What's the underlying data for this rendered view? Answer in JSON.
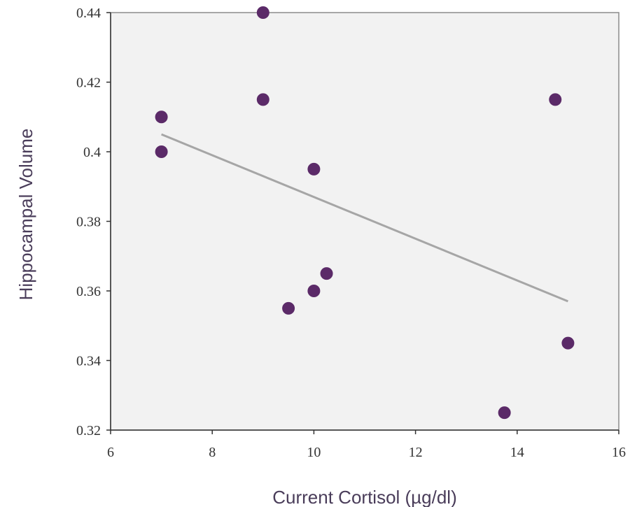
{
  "chart_data": {
    "type": "scatter",
    "title": "",
    "xlabel": "Current Cortisol (µg/dl)",
    "ylabel": "Hippocampal Volume",
    "xlim": [
      6,
      16
    ],
    "ylim": [
      0.32,
      0.44
    ],
    "x_ticks": [
      "6",
      "8",
      "10",
      "12",
      "14",
      "16"
    ],
    "y_ticks": [
      "0.32",
      "0.34",
      "0.36",
      "0.38",
      "0.4",
      "0.42",
      "0.44"
    ],
    "grid": false,
    "legend": "none",
    "colors": {
      "points": "#5b2a68",
      "trendline": "#a6a6a6",
      "plot_background": "#f2f2f2",
      "plot_border": "#8c8c8c"
    },
    "series": [
      {
        "points": [
          {
            "x": 7,
            "y": 0.41
          },
          {
            "x": 7,
            "y": 0.4
          },
          {
            "x": 9,
            "y": 0.44
          },
          {
            "x": 9,
            "y": 0.415
          },
          {
            "x": 9.5,
            "y": 0.355
          },
          {
            "x": 10,
            "y": 0.395
          },
          {
            "x": 10,
            "y": 0.36
          },
          {
            "x": 10.25,
            "y": 0.365
          },
          {
            "x": 13.75,
            "y": 0.325
          },
          {
            "x": 14.75,
            "y": 0.415
          },
          {
            "x": 15,
            "y": 0.345
          }
        ]
      }
    ],
    "trendline": {
      "type": "linear",
      "points": [
        {
          "x": 7,
          "y": 0.405
        },
        {
          "x": 15,
          "y": 0.357
        }
      ]
    }
  }
}
